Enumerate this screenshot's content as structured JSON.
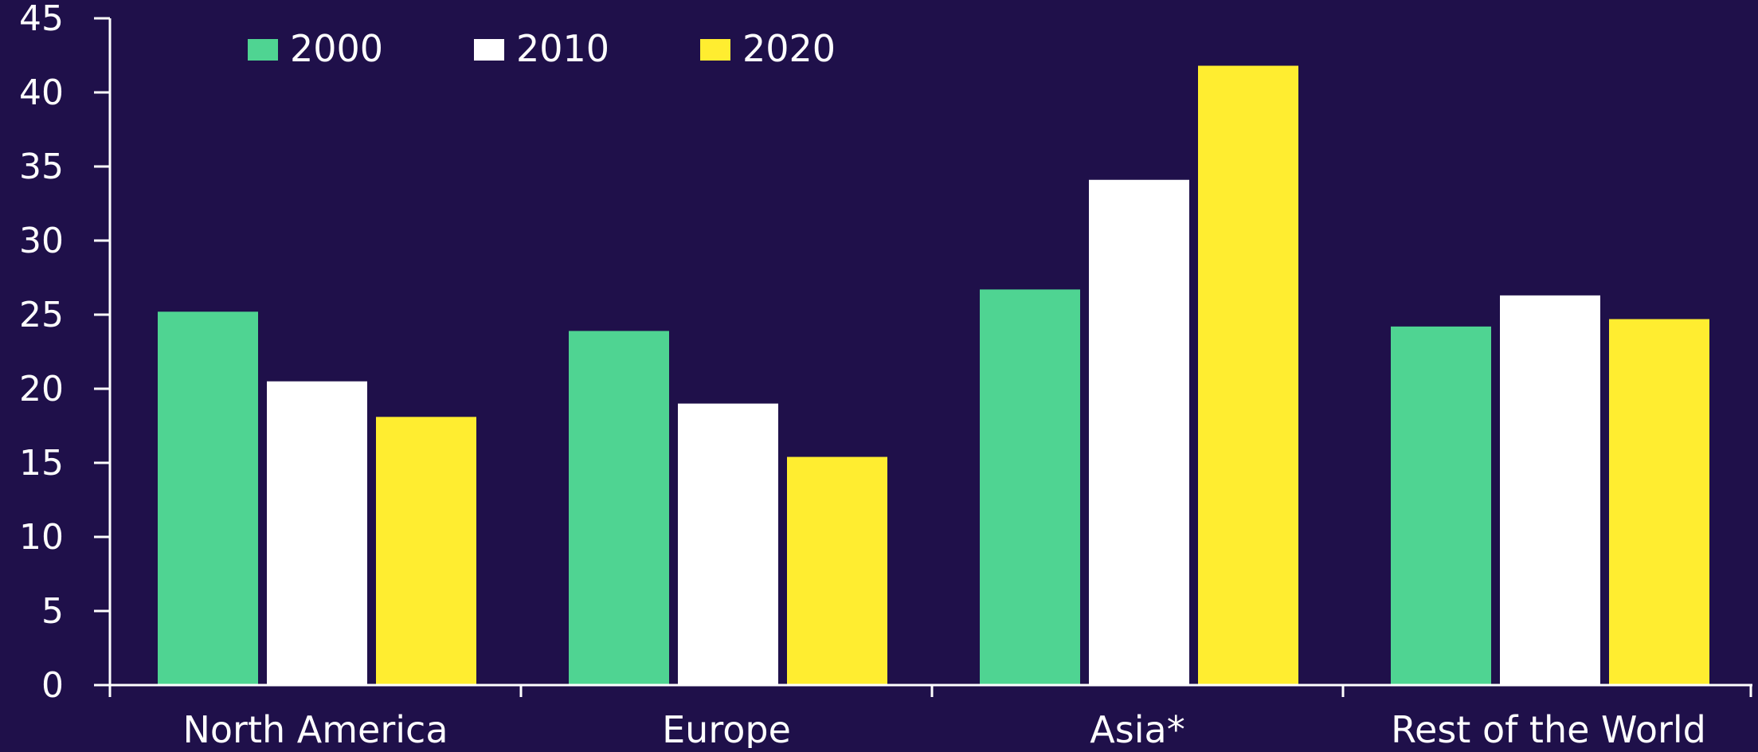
{
  "chart_data": {
    "type": "bar",
    "title": "",
    "xlabel": "",
    "ylabel": "",
    "categories": [
      "North America",
      "Europe",
      "Asia*",
      "Rest of the World"
    ],
    "series": [
      {
        "name": "2000",
        "color": "#4fd492",
        "values": [
          25.2,
          23.9,
          26.7,
          24.2
        ]
      },
      {
        "name": "2010",
        "color": "#ffffff",
        "values": [
          20.5,
          19.0,
          34.1,
          26.3
        ]
      },
      {
        "name": "2020",
        "color": "#ffed30",
        "values": [
          18.1,
          15.4,
          41.8,
          24.7
        ]
      }
    ],
    "ylim": [
      0,
      45
    ],
    "yticks": [
      0,
      5,
      10,
      15,
      20,
      25,
      30,
      35,
      40,
      45
    ],
    "grid": false,
    "legend_position": "top-left"
  },
  "colors": {
    "background": "#1f104a",
    "axis": "#ffffff",
    "text": "#ffffff"
  }
}
